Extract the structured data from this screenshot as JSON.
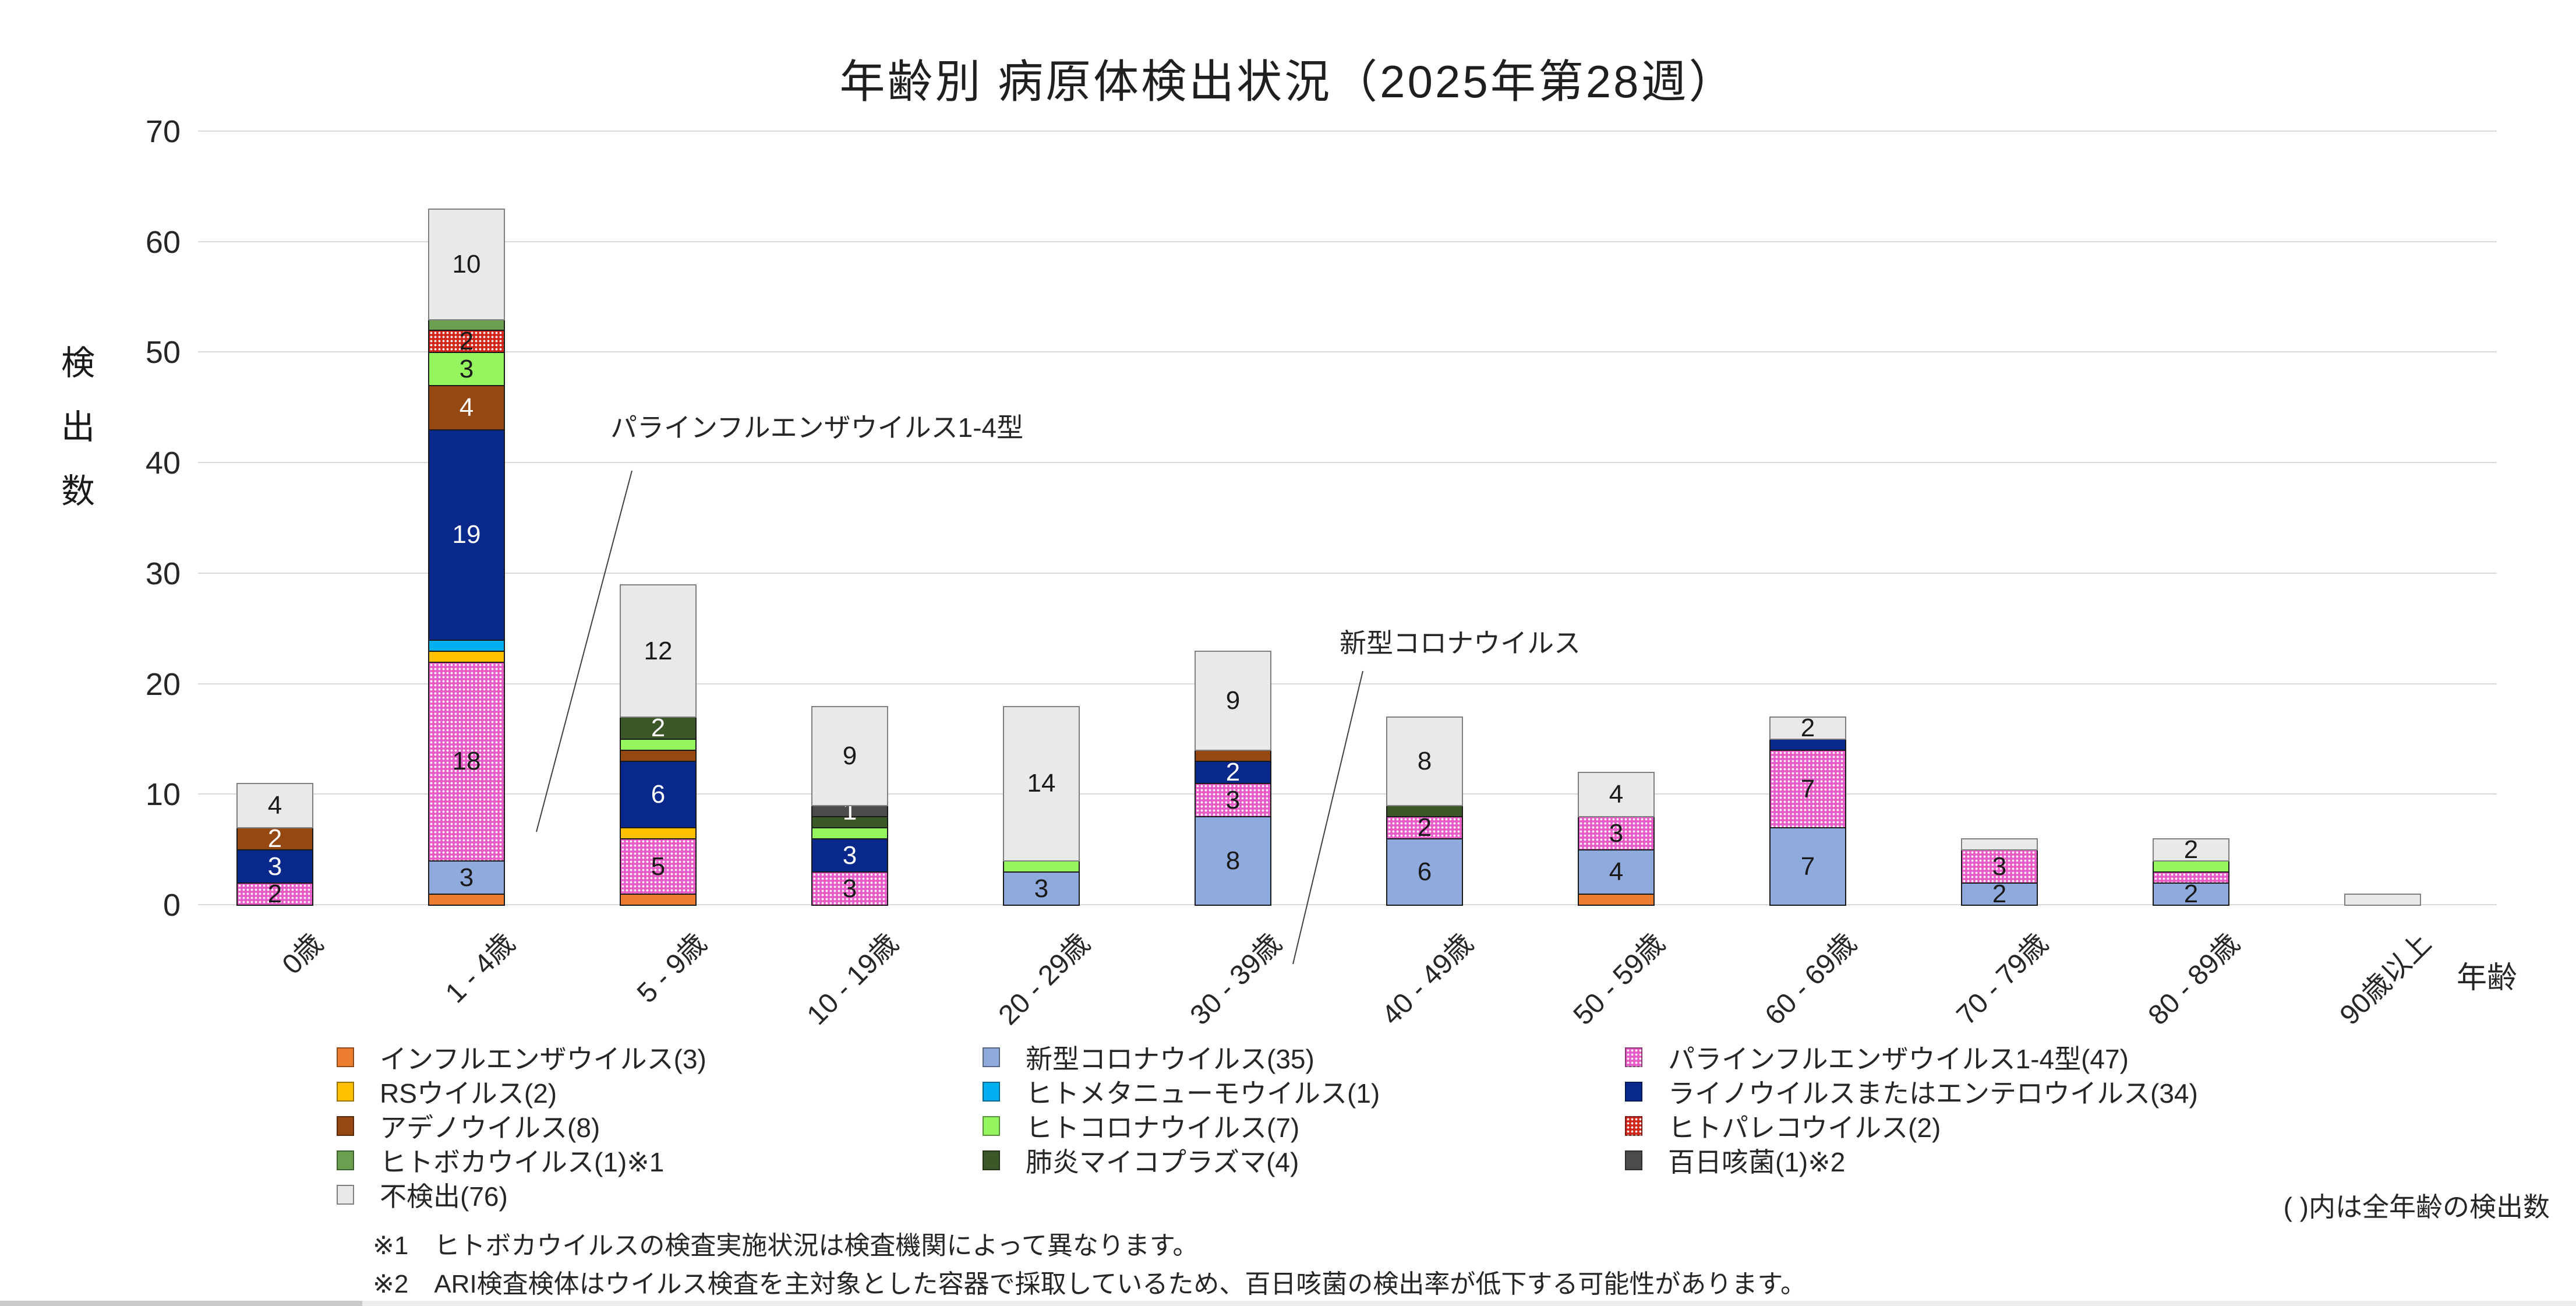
{
  "chart_data": {
    "type": "bar",
    "stacked": true,
    "title": "年齢別 病原体検出状況（2025年第28週）",
    "ylabel": "検出数",
    "xlabel": "年齢",
    "ylim": [
      0,
      70
    ],
    "yticks": [
      0,
      10,
      20,
      30,
      40,
      50,
      60,
      70
    ],
    "grid": "horizontal",
    "categories": [
      "0歳",
      "1 - 4歳",
      "5 - 9歳",
      "10 - 19歳",
      "20 - 29歳",
      "30 - 39歳",
      "40 - 49歳",
      "50 - 59歳",
      "60 - 69歳",
      "70 - 79歳",
      "80 - 89歳",
      "90歳以上"
    ],
    "series": [
      {
        "name": "インフルエンザウイルス(3)",
        "color": "#ED7D31",
        "pattern": "solid",
        "label_color": "#1a1a1a",
        "values": [
          0,
          1,
          1,
          0,
          0,
          0,
          0,
          1,
          0,
          0,
          0,
          0
        ]
      },
      {
        "name": "新型コロナウイルス(35)",
        "color": "#8FAADC",
        "pattern": "solid",
        "label_color": "#1a1a1a",
        "values": [
          0,
          3,
          0,
          0,
          3,
          8,
          6,
          4,
          7,
          2,
          2,
          0
        ]
      },
      {
        "name": "パラインフルエンザウイルス1-4型(47)",
        "color": "#E75BC7",
        "pattern": "white-dots",
        "label_color": "#1a1a1a",
        "values": [
          2,
          18,
          5,
          3,
          0,
          3,
          2,
          3,
          7,
          3,
          1,
          0
        ]
      },
      {
        "name": "RSウイルス(2)",
        "color": "#FFC000",
        "pattern": "solid",
        "label_color": "#1a1a1a",
        "values": [
          0,
          1,
          1,
          0,
          0,
          0,
          0,
          0,
          0,
          0,
          0,
          0
        ]
      },
      {
        "name": "ヒトメタニューモウイルス(1)",
        "color": "#00B0F0",
        "pattern": "solid",
        "label_color": "#1a1a1a",
        "values": [
          0,
          1,
          0,
          0,
          0,
          0,
          0,
          0,
          0,
          0,
          0,
          0
        ]
      },
      {
        "name": "ライノウイルスまたはエンテロウイルス(34)",
        "color": "#08288C",
        "pattern": "solid",
        "label_color": "#ffffff",
        "values": [
          3,
          19,
          6,
          3,
          0,
          2,
          0,
          0,
          1,
          0,
          0,
          0
        ]
      },
      {
        "name": "アデノウイルス(8)",
        "color": "#964812",
        "pattern": "solid",
        "label_color": "#ffffff",
        "values": [
          2,
          4,
          1,
          0,
          0,
          1,
          0,
          0,
          0,
          0,
          0,
          0
        ]
      },
      {
        "name": "ヒトコロナウイルス(7)",
        "color": "#95F55F",
        "pattern": "solid",
        "label_color": "#1a1a1a",
        "values": [
          0,
          3,
          1,
          1,
          1,
          0,
          0,
          0,
          0,
          0,
          1,
          0
        ]
      },
      {
        "name": "ヒトパレコウイルス(2)",
        "color": "#D3261B",
        "pattern": "white-dots",
        "label_color": "#1a1a1a",
        "values": [
          0,
          2,
          0,
          0,
          0,
          0,
          0,
          0,
          0,
          0,
          0,
          0
        ]
      },
      {
        "name": "ヒトボカウイルス(1)※1",
        "color": "#6AA050",
        "pattern": "solid",
        "label_color": "#1a1a1a",
        "values": [
          0,
          1,
          0,
          0,
          0,
          0,
          0,
          0,
          0,
          0,
          0,
          0
        ]
      },
      {
        "name": "肺炎マイコプラズマ(4)",
        "color": "#3C5828",
        "pattern": "solid",
        "label_color": "#ffffff",
        "values": [
          0,
          0,
          2,
          1,
          0,
          0,
          1,
          0,
          0,
          0,
          0,
          0
        ]
      },
      {
        "name": "百日咳菌(1)※2",
        "color": "#4B4B49",
        "pattern": "solid",
        "label_color": "#ffffff",
        "values": [
          0,
          0,
          0,
          1,
          0,
          0,
          0,
          0,
          0,
          0,
          0,
          0
        ]
      },
      {
        "name": "不検出(76)",
        "color": "#E9E9E9",
        "border": "#7F7F7F",
        "pattern": "solid",
        "label_color": "#1a1a1a",
        "values": [
          4,
          10,
          12,
          9,
          14,
          9,
          8,
          4,
          2,
          1,
          2,
          1
        ]
      }
    ],
    "category_totals": [
      11,
      63,
      29,
      18,
      18,
      23,
      17,
      12,
      17,
      6,
      6,
      1
    ],
    "label_min_value": 2,
    "label_exceptions": [
      {
        "series": 11,
        "category": 3
      }
    ],
    "legend_position": "bottom",
    "legend_columns": [
      [
        0,
        3,
        6,
        9,
        12
      ],
      [
        1,
        4,
        7,
        10
      ],
      [
        2,
        5,
        8,
        11
      ]
    ],
    "annotations": [
      {
        "text": "パラインフルエンザウイルス1-4型",
        "tx": 1048,
        "ty": 698,
        "line": {
          "x1": 1085,
          "y1": 808,
          "x2": 921,
          "y2": 1428
        }
      },
      {
        "text": "新型コロナウイルス",
        "tx": 2300,
        "ty": 1068,
        "line": {
          "x1": 2340,
          "y1": 1152,
          "x2": 2220,
          "y2": 1655
        }
      }
    ],
    "side_note": "( )内は全年齢の検出数",
    "footnotes": [
      "※1　ヒトボカウイルスの検査実施状況は検査機関によって異なります。",
      "※2　ARI検査検体はウイルス検査を主対象とした容器で採取しているため、百日咳菌の検出率が低下する可能性があります。"
    ],
    "colors": {
      "gridline": "#D9D9D9",
      "segment_border": "#1a1a1a",
      "not_detected_border": "#7F7F7F",
      "text": "#262626"
    }
  }
}
